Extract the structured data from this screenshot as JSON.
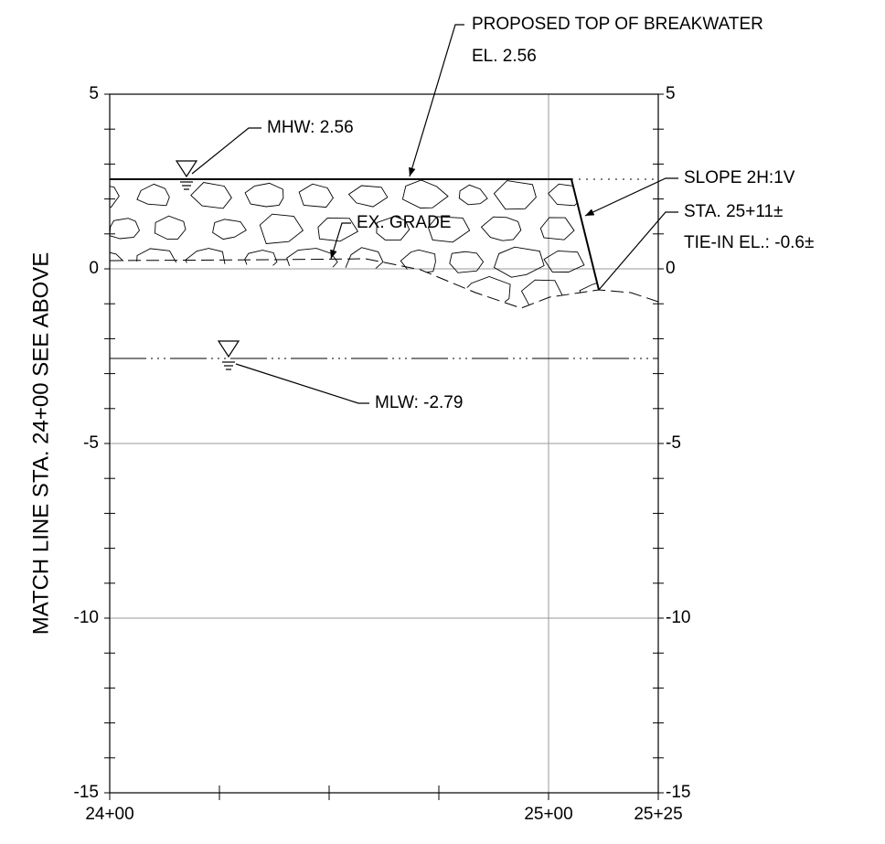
{
  "title": "MATCH LINE STA. 24+00 SEE ABOVE",
  "axes": {
    "ylim": [
      -15,
      5
    ],
    "yticks": [
      5,
      0,
      -5,
      -10,
      -15
    ],
    "xlim": [
      2400,
      2525
    ],
    "xticks": [
      {
        "value": 2400,
        "label": "24+00"
      },
      {
        "value": 2500,
        "label": "25+00"
      },
      {
        "value": 2525,
        "label": "25+25"
      }
    ]
  },
  "annotations": {
    "breakwater": [
      "PROPOSED TOP OF BREAKWATER",
      "EL. 2.56"
    ],
    "mhw": "MHW: 2.56",
    "ex_grade": "EX. GRADE",
    "slope": "SLOPE 2H:1V",
    "tie_in": [
      "STA. 25+11±",
      "TIE-IN EL.: -0.6±"
    ],
    "mlw": "MLW: -2.79"
  }
}
